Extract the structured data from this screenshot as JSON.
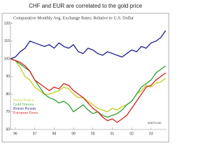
{
  "chart_data": {
    "type": "line",
    "title": "CHF and EUR are correlated to the gold price",
    "subtitle": "Comparative Monthly Avg. Exchange Rates: Relative to U.S. Dollar",
    "source": "sdrcf.com",
    "x": [
      1995.75,
      1996,
      1996.25,
      1996.5,
      1996.75,
      1997,
      1997.25,
      1997.5,
      1997.75,
      1998,
      1998.25,
      1998.5,
      1998.75,
      1999,
      1999.25,
      1999.5,
      1999.75,
      2000,
      2000.25,
      2000.5,
      2000.75,
      2001,
      2001.25,
      2001.5,
      2001.75,
      2002,
      2002.25,
      2002.5,
      2002.75,
      2003,
      2003.25,
      2003.5,
      2003.75
    ],
    "series": [
      {
        "name": "Swiss Francs",
        "color": "#c4cc1c",
        "values": [
          100,
          99,
          95,
          90,
          88,
          84,
          82,
          80,
          80,
          81,
          82,
          84,
          83,
          80,
          78,
          78,
          76,
          74,
          72,
          71,
          70,
          72,
          71,
          73,
          74,
          76,
          80,
          82,
          85,
          84,
          86,
          87,
          89
        ]
      },
      {
        "name": "Gold Ounces",
        "color": "#2e9e2e",
        "values": [
          100,
          99,
          97,
          95,
          93,
          88,
          84,
          80,
          78,
          77,
          75,
          76,
          74,
          70,
          72,
          74,
          71,
          69,
          70,
          68,
          67,
          68,
          69,
          71,
          74,
          76,
          80,
          84,
          86,
          88,
          92,
          94,
          96
        ]
      },
      {
        "name": "British Pounds",
        "color": "#1c1c8c",
        "values": [
          100,
          101,
          104,
          106,
          110,
          109,
          108,
          107,
          108,
          106,
          109,
          107,
          106,
          108,
          104,
          103,
          106,
          105,
          103,
          102,
          104,
          103,
          102,
          101,
          103,
          105,
          104,
          107,
          106,
          109,
          110,
          112,
          116
        ]
      },
      {
        "name": "European Euros",
        "color": "#d42020",
        "values": [
          100,
          99,
          98,
          96,
          93,
          88,
          86,
          84,
          82,
          84,
          83,
          86,
          85,
          82,
          80,
          78,
          75,
          72,
          70,
          67,
          65,
          66,
          64,
          66,
          68,
          72,
          76,
          80,
          84,
          85,
          88,
          90,
          92
        ]
      }
    ],
    "xlim": [
      1995.75,
      2003.8
    ],
    "xticks": [
      {
        "value": 1996,
        "label": "96"
      },
      {
        "value": 1997,
        "label": "97"
      },
      {
        "value": 1998,
        "label": "98"
      },
      {
        "value": 1999,
        "label": "99"
      },
      {
        "value": 2000,
        "label": "00"
      },
      {
        "value": 2001,
        "label": "01"
      },
      {
        "value": 2002,
        "label": "02"
      },
      {
        "value": 2003,
        "label": "03"
      }
    ],
    "ylim": [
      60,
      121
    ],
    "yticks": [
      60,
      70,
      80,
      90,
      100,
      110,
      120
    ],
    "grid": false
  }
}
